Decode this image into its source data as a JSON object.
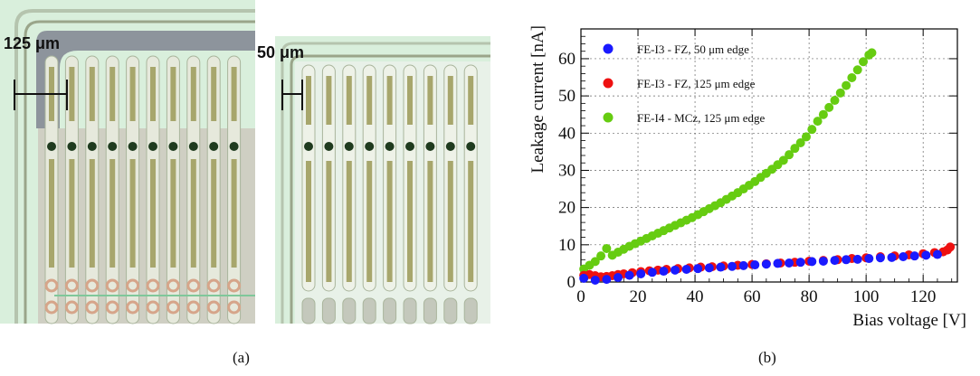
{
  "panel_a": {
    "edge_label_left": "125 μm",
    "edge_label_right": "50 μm",
    "colors": {
      "edge_green": "#d8eedc",
      "guard_ring": "#9aa58a",
      "strip": "#c8c8ba",
      "implant": "#a7a66c",
      "bias_dot": "#1f3b1f",
      "bump": "#d6a58a",
      "metal_grey": "#8d949c"
    }
  },
  "captions": {
    "a": "(a)",
    "b": "(b)"
  },
  "chart_data": {
    "type": "scatter",
    "xlabel": "Bias voltage [V]",
    "ylabel": "Leakage current [nA]",
    "xlim": [
      0,
      132
    ],
    "ylim": [
      0,
      68
    ],
    "xticks": [
      0,
      20,
      40,
      60,
      80,
      100,
      120
    ],
    "yticks": [
      0,
      10,
      20,
      30,
      40,
      50,
      60
    ],
    "grid": true,
    "legend_position": "top-left",
    "series": [
      {
        "name": "FE-I3 - FZ, 50 μm edge",
        "color": "#1a1aff",
        "x": [
          1,
          5,
          9,
          13,
          17,
          21,
          25,
          29,
          33,
          37,
          41,
          45,
          49,
          53,
          57,
          61,
          65,
          69,
          73,
          77,
          81,
          85,
          89,
          93,
          97,
          101,
          105,
          109,
          113,
          117,
          121,
          125
        ],
        "y": [
          1.0,
          0.5,
          0.7,
          1.2,
          1.8,
          2.2,
          2.6,
          2.9,
          3.2,
          3.4,
          3.6,
          3.8,
          4.0,
          4.2,
          4.4,
          4.6,
          4.8,
          5.0,
          5.1,
          5.3,
          5.5,
          5.6,
          5.8,
          6.0,
          6.1,
          6.3,
          6.5,
          6.6,
          6.8,
          7.0,
          7.2,
          7.4
        ]
      },
      {
        "name": "FE-I3 - FZ, 125 μm edge",
        "color": "#ee1111",
        "x": [
          1,
          3,
          5,
          7,
          9,
          11,
          13,
          15,
          18,
          21,
          24,
          27,
          30,
          34,
          38,
          42,
          46,
          50,
          55,
          60,
          65,
          70,
          75,
          80,
          85,
          90,
          95,
          100,
          105,
          110,
          115,
          120,
          124,
          127,
          128.5,
          129.5
        ],
        "y": [
          1.8,
          2.0,
          1.7,
          1.4,
          1.5,
          1.7,
          2.0,
          2.2,
          2.5,
          2.8,
          3.0,
          3.2,
          3.4,
          3.6,
          3.8,
          4.0,
          4.1,
          4.3,
          4.5,
          4.7,
          4.9,
          5.1,
          5.3,
          5.6,
          5.8,
          6.0,
          6.3,
          6.5,
          6.8,
          7.0,
          7.3,
          7.6,
          7.9,
          8.1,
          8.6,
          9.4
        ]
      },
      {
        "name": "FE-I4 - MCz, 125 μm edge",
        "color": "#66cc11",
        "x": [
          1,
          3,
          5,
          7,
          9,
          11,
          13,
          15,
          17,
          19,
          21,
          23,
          25,
          27,
          29,
          31,
          33,
          35,
          37,
          39,
          41,
          43,
          45,
          47,
          49,
          51,
          53,
          55,
          57,
          59,
          61,
          63,
          65,
          67,
          69,
          71,
          73,
          75,
          77,
          79,
          81,
          83,
          85,
          87,
          89,
          91,
          93,
          95,
          97,
          99,
          101,
          102
        ],
        "y": [
          3.5,
          4.5,
          5.5,
          7.0,
          9.0,
          7.2,
          8.0,
          8.8,
          9.6,
          10.3,
          11.0,
          11.7,
          12.4,
          13.1,
          13.8,
          14.5,
          15.2,
          15.9,
          16.6,
          17.3,
          18.1,
          18.9,
          19.7,
          20.5,
          21.3,
          22.2,
          23.1,
          24.0,
          25.0,
          26.0,
          27.0,
          28.1,
          29.2,
          30.3,
          31.5,
          32.7,
          34.2,
          35.9,
          37.4,
          39.0,
          41.0,
          43.2,
          45.0,
          46.9,
          48.8,
          50.8,
          52.8,
          54.9,
          57.0,
          59.2,
          61.0,
          61.6
        ]
      }
    ]
  }
}
